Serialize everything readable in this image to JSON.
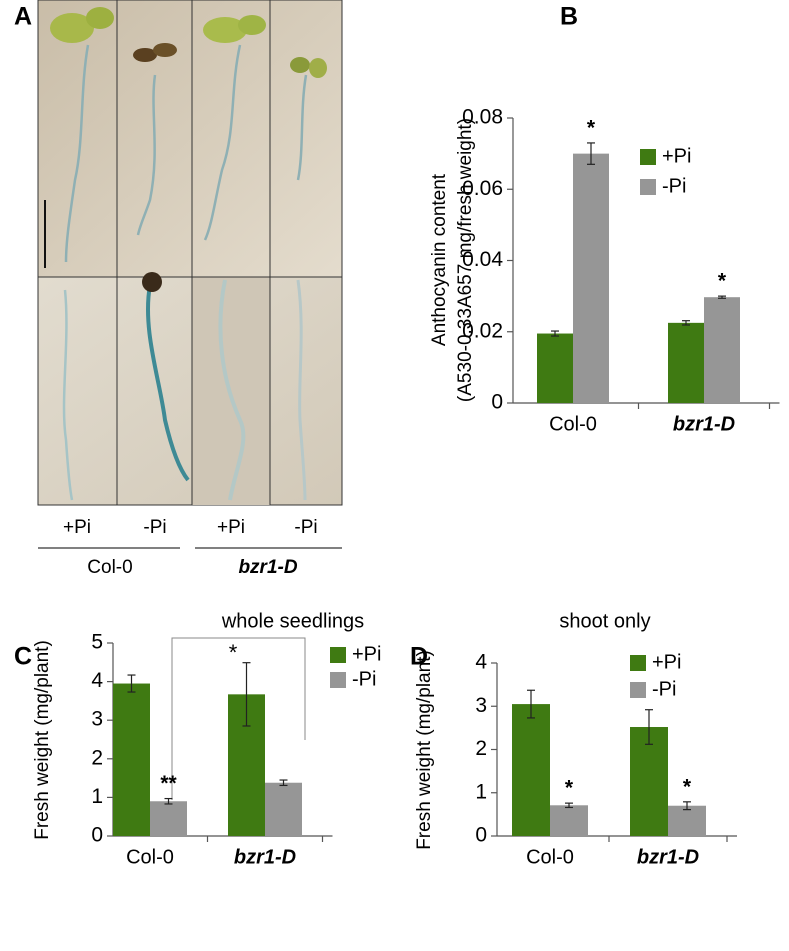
{
  "panel_a": {
    "label": "A",
    "conditions": [
      "+Pi",
      "-Pi",
      "+Pi",
      "-Pi"
    ],
    "genotypes": [
      "Col-0",
      "bzr1-D"
    ]
  },
  "chart_data": [
    {
      "type": "bar",
      "panel": "B",
      "ylabel": [
        "Anthocyanin content",
        "(A530-0.33A657 mg/fresh weight)"
      ],
      "categories": [
        "Col-0",
        "bzr1-D"
      ],
      "series": [
        {
          "name": "+Pi",
          "color": "#3f7a12",
          "values": [
            0.0195,
            0.0225
          ],
          "errors": [
            0.0007,
            0.0006
          ]
        },
        {
          "name": "-Pi",
          "color": "#969696",
          "values": [
            0.07,
            0.0297
          ],
          "errors": [
            0.003,
            0.0003
          ],
          "significance": [
            "*",
            "*"
          ]
        }
      ],
      "ylim": [
        0,
        0.08
      ],
      "yticks": [
        0,
        0.02,
        0.04,
        0.06,
        0.08
      ]
    },
    {
      "type": "bar",
      "panel": "C",
      "title": "whole seedlings",
      "ylabel": "Fresh weight (mg/plant)",
      "categories": [
        "Col-0",
        "bzr1-D"
      ],
      "series": [
        {
          "name": "+Pi",
          "color": "#3f7a12",
          "values": [
            3.95,
            3.67
          ],
          "errors": [
            0.22,
            0.82
          ]
        },
        {
          "name": "-Pi",
          "color": "#969696",
          "values": [
            0.9,
            1.38
          ],
          "errors": [
            0.07,
            0.07
          ],
          "significance": [
            "**",
            null
          ]
        }
      ],
      "bracket_label": "*",
      "ylim": [
        0,
        5
      ],
      "yticks": [
        0,
        1,
        2,
        3,
        4,
        5
      ]
    },
    {
      "type": "bar",
      "panel": "D",
      "title": "shoot only",
      "ylabel": "Fresh weight (mg/plant)",
      "categories": [
        "Col-0",
        "bzr1-D"
      ],
      "series": [
        {
          "name": "+Pi",
          "color": "#3f7a12",
          "values": [
            3.05,
            2.52
          ],
          "errors": [
            0.32,
            0.4
          ]
        },
        {
          "name": "-Pi",
          "color": "#969696",
          "values": [
            0.71,
            0.7
          ],
          "errors": [
            0.05,
            0.09
          ],
          "significance": [
            "*",
            "*"
          ]
        }
      ],
      "ylim": [
        0,
        4
      ],
      "yticks": [
        0,
        1,
        2,
        3,
        4
      ]
    }
  ]
}
